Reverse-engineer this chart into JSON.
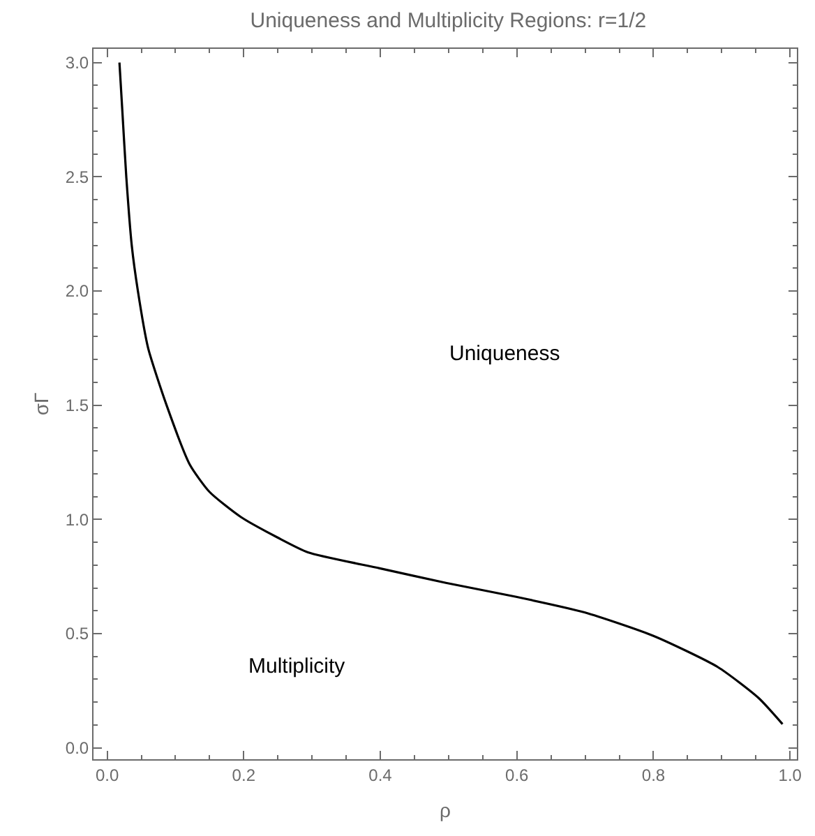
{
  "chart_data": {
    "type": "line",
    "title": "Uniqueness and Multiplicity Regions: r=1/2",
    "xlabel": "ρ",
    "ylabel": "σΓ",
    "x": [
      0.018,
      0.022,
      0.028,
      0.036,
      0.045,
      0.06,
      0.087,
      0.121,
      0.15,
      0.196,
      0.25,
      0.294,
      0.399,
      0.496,
      0.599,
      0.699,
      0.8,
      0.894,
      0.954,
      0.989
    ],
    "series": [
      {
        "color": "#000000",
        "values": [
          3.0,
          2.8,
          2.5,
          2.2,
          2.0,
          1.75,
          1.5,
          1.24,
          1.12,
          1.01,
          0.92,
          0.856,
          0.786,
          0.722,
          0.661,
          0.593,
          0.49,
          0.354,
          0.218,
          0.104
        ]
      }
    ],
    "xlim": [
      -0.02,
      1.01
    ],
    "ylim": [
      -0.05,
      3.06
    ],
    "xticks": [
      {
        "value": 0,
        "label": "0.0"
      },
      0.2,
      0.4,
      0.6,
      0.8,
      {
        "value": 1,
        "label": "1.0"
      }
    ],
    "yticks": [
      {
        "value": 0,
        "label": "0.0"
      },
      0.5,
      {
        "value": 1,
        "label": "1.0"
      },
      1.5,
      {
        "value": 2,
        "label": "2.0"
      },
      2.5,
      {
        "value": 3,
        "label": "3.0"
      }
    ],
    "annotations": [
      "Uniqueness",
      "Multiplicity"
    ],
    "marker": "none",
    "line_style": "solid"
  }
}
